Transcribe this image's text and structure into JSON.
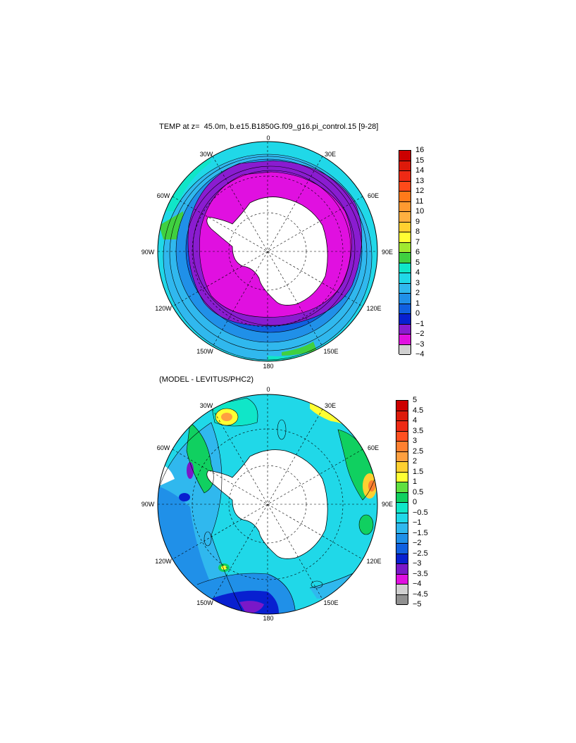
{
  "panel1": {
    "title": "TEMP at z=  45.0m, b.e15.B1850G.f09_g16.pi_control.15 [9-28]",
    "lon_labels": {
      "top": "0",
      "l30": "30W",
      "r30": "30E",
      "l60": "60W",
      "r60": "60E",
      "l90": "90W",
      "r90": "90E",
      "l120": "120W",
      "r120": "120E",
      "l150": "150W",
      "r150": "150E",
      "bottom": "180"
    },
    "colorbar": {
      "labels": [
        "16",
        "15",
        "14",
        "13",
        "12",
        "11",
        "10",
        "9",
        "8",
        "7",
        "6",
        "5",
        "4",
        "3",
        "2",
        "1",
        "0",
        "−1",
        "−2",
        "−3",
        "−4"
      ],
      "colors": [
        "#cc0000",
        "#dd1a0a",
        "#ee2a15",
        "#ff4a1a",
        "#ff7a1a",
        "#ff9a30",
        "#ffb040",
        "#ffd030",
        "#ffff33",
        "#a0e830",
        "#40d040",
        "#10e6c8",
        "#20d8e8",
        "#30b8ee",
        "#2090e8",
        "#1060e0",
        "#0820d0",
        "#8a1cd0",
        "#e010e0",
        "#d0d0d0",
        "#707070"
      ]
    }
  },
  "panel2": {
    "title": "(MODEL - LEVITUS/PHC2)",
    "lon_labels": {
      "top": "0",
      "l30": "30W",
      "r30": "30E",
      "l60": "60W",
      "r60": "60E",
      "l90": "90W",
      "r90": "90E",
      "l120": "120W",
      "r120": "120E",
      "l150": "150W",
      "r150": "150E",
      "bottom": "180"
    },
    "colorbar": {
      "labels": [
        "5",
        "4.5",
        "4",
        "3.5",
        "3",
        "2.5",
        "2",
        "1.5",
        "1",
        "0.5",
        "0",
        "−0.5",
        "−1",
        "−1.5",
        "−2",
        "−2.5",
        "−3",
        "−3.5",
        "−4",
        "−4.5",
        "−5"
      ],
      "colors": [
        "#cc0000",
        "#dd1a0a",
        "#ee2a15",
        "#ff5020",
        "#ff8030",
        "#ffa040",
        "#ffd030",
        "#ffff33",
        "#60e040",
        "#10d060",
        "#10e6c8",
        "#20d8e8",
        "#30b8ee",
        "#2090e8",
        "#1060e0",
        "#0820d0",
        "#7a18c8",
        "#e010e0",
        "#d0d0d0",
        "#909090",
        "#606060"
      ]
    }
  }
}
